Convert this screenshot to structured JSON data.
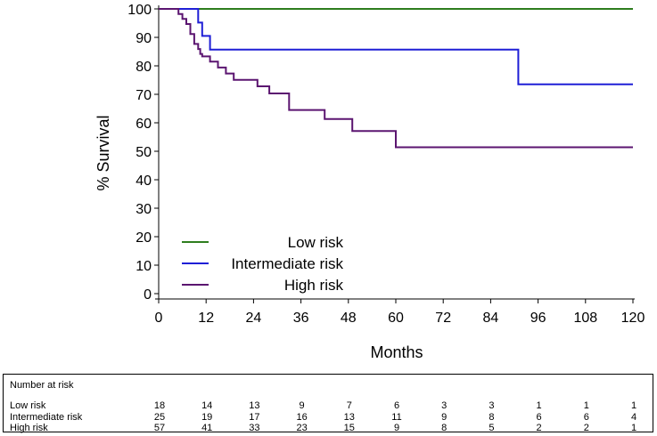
{
  "chart_data": {
    "type": "line",
    "step": true,
    "title": "",
    "xlabel": "Months",
    "ylabel": "% Survival",
    "xlim": [
      0,
      120
    ],
    "ylim": [
      0,
      100
    ],
    "x_ticks": [
      0,
      12,
      24,
      36,
      48,
      60,
      72,
      84,
      96,
      108,
      120
    ],
    "y_ticks": [
      0,
      10,
      20,
      30,
      40,
      50,
      60,
      70,
      80,
      90,
      100
    ],
    "legend_position": "bottom-left",
    "series": [
      {
        "name": "Low risk",
        "color": "#2e7d1e",
        "points": [
          [
            0,
            100
          ],
          [
            120,
            100
          ]
        ]
      },
      {
        "name": "Intermediate risk",
        "color": "#1f1fd6",
        "points": [
          [
            0,
            100
          ],
          [
            10,
            100
          ],
          [
            10,
            95.2
          ],
          [
            11,
            95.2
          ],
          [
            11,
            90.5
          ],
          [
            13,
            90.5
          ],
          [
            13,
            85.7
          ],
          [
            91,
            85.7
          ],
          [
            91,
            73.5
          ],
          [
            120,
            73.5
          ]
        ]
      },
      {
        "name": "High risk",
        "color": "#5b1570",
        "points": [
          [
            0,
            100
          ],
          [
            5,
            100
          ],
          [
            5,
            98.2
          ],
          [
            6,
            98.2
          ],
          [
            6,
            96.5
          ],
          [
            7,
            96.5
          ],
          [
            7,
            94.7
          ],
          [
            8,
            94.7
          ],
          [
            8,
            91.2
          ],
          [
            9,
            91.2
          ],
          [
            9,
            87.7
          ],
          [
            10,
            87.7
          ],
          [
            10,
            85.9
          ],
          [
            10.5,
            85.9
          ],
          [
            10.5,
            84.2
          ],
          [
            11,
            84.2
          ],
          [
            11,
            83.3
          ],
          [
            13,
            83.3
          ],
          [
            13,
            81.5
          ],
          [
            15,
            81.5
          ],
          [
            15,
            79.4
          ],
          [
            17,
            79.4
          ],
          [
            17,
            77.3
          ],
          [
            19,
            77.3
          ],
          [
            19,
            75.1
          ],
          [
            25,
            75.1
          ],
          [
            25,
            72.8
          ],
          [
            28,
            72.8
          ],
          [
            28,
            70.3
          ],
          [
            33,
            70.3
          ],
          [
            33,
            64.5
          ],
          [
            42,
            64.5
          ],
          [
            42,
            61.3
          ],
          [
            49,
            61.3
          ],
          [
            49,
            57.1
          ],
          [
            60,
            57.1
          ],
          [
            60,
            51.4
          ],
          [
            120,
            51.4
          ]
        ]
      }
    ],
    "risk_table": {
      "header": "Number at risk",
      "times": [
        0,
        12,
        24,
        36,
        48,
        60,
        72,
        84,
        96,
        108,
        120
      ],
      "rows": [
        {
          "label": "Low risk",
          "values": [
            "18",
            "14",
            "13",
            "9",
            "7",
            "6",
            "3",
            "3",
            "1",
            "1",
            "1"
          ]
        },
        {
          "label": "Intermediate risk",
          "values": [
            "25",
            "19",
            "17",
            "16",
            "13",
            "11",
            "9",
            "8",
            "6",
            "6",
            "4"
          ]
        },
        {
          "label": "High risk",
          "values": [
            "57",
            "41",
            "33",
            "23",
            "15",
            "9",
            "8",
            "5",
            "2",
            "2",
            "1"
          ]
        }
      ]
    }
  }
}
